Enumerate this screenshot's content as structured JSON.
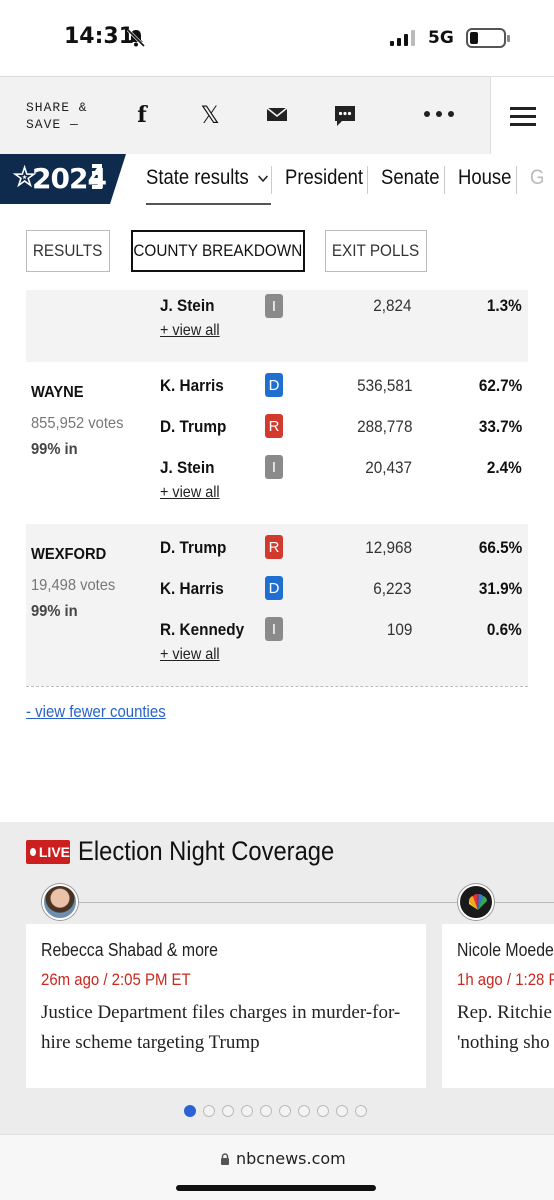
{
  "status_bar": {
    "time": "14:31",
    "network": "5G"
  },
  "share_bar": {
    "label": "SHARE & SAVE —",
    "icons": [
      "facebook-icon",
      "x-icon",
      "mail-icon",
      "sms-icon",
      "more-icon",
      "menu-icon"
    ]
  },
  "election_nav": {
    "badge": "2024",
    "links": [
      {
        "label": "State results",
        "active": true
      },
      {
        "label": "President"
      },
      {
        "label": "Senate"
      },
      {
        "label": "House"
      },
      {
        "label": "G"
      }
    ]
  },
  "tabs": [
    {
      "label": "RESULTS"
    },
    {
      "label": "COUNTY BREAKDOWN",
      "active": true
    },
    {
      "label": "EXIT POLLS"
    }
  ],
  "counties": [
    {
      "name": "",
      "candidates": [
        {
          "name": "J. Stein",
          "party": "I",
          "votes": "2,824",
          "pct": "1.3%"
        }
      ],
      "view_all": "+ view all"
    },
    {
      "name": "WAYNE",
      "total_votes": "855,952 votes",
      "reporting": "99% in",
      "candidates": [
        {
          "name": "K. Harris",
          "party": "D",
          "votes": "536,581",
          "pct": "62.7%"
        },
        {
          "name": "D. Trump",
          "party": "R",
          "votes": "288,778",
          "pct": "33.7%"
        },
        {
          "name": "J. Stein",
          "party": "I",
          "votes": "20,437",
          "pct": "2.4%"
        }
      ],
      "view_all": "+ view all"
    },
    {
      "name": "WEXFORD",
      "total_votes": "19,498 votes",
      "reporting": "99% in",
      "candidates": [
        {
          "name": "D. Trump",
          "party": "R",
          "votes": "12,968",
          "pct": "66.5%"
        },
        {
          "name": "K. Harris",
          "party": "D",
          "votes": "6,223",
          "pct": "31.9%"
        },
        {
          "name": "R. Kennedy",
          "party": "I",
          "votes": "109",
          "pct": "0.6%"
        }
      ],
      "view_all": "+ view all"
    }
  ],
  "view_fewer": "- view fewer counties",
  "live": {
    "badge": "LIVE",
    "title": "Election Night Coverage",
    "cards": [
      {
        "author": "Rebecca Shabad & more",
        "time": "26m ago / 2:05 PM ET",
        "headline": "Justice Department files charges in murder-for-hire scheme targeting Trump"
      },
      {
        "author": "Nicole Moeder",
        "time": "1h ago / 1:28 P",
        "headline_line1": "Rep. Ritchie",
        "headline_line2": "'nothing sho"
      }
    ],
    "pager": {
      "count": 10,
      "active": 1
    }
  },
  "url_bar": {
    "domain": "nbcnews.com"
  },
  "colors": {
    "democrat": "#1f6fd1",
    "republican": "#d23a2e",
    "independent": "#8a8a8a",
    "brand_navy": "#0e2a4d",
    "live_red": "#cc1f1f",
    "link_blue": "#2a62c9"
  }
}
